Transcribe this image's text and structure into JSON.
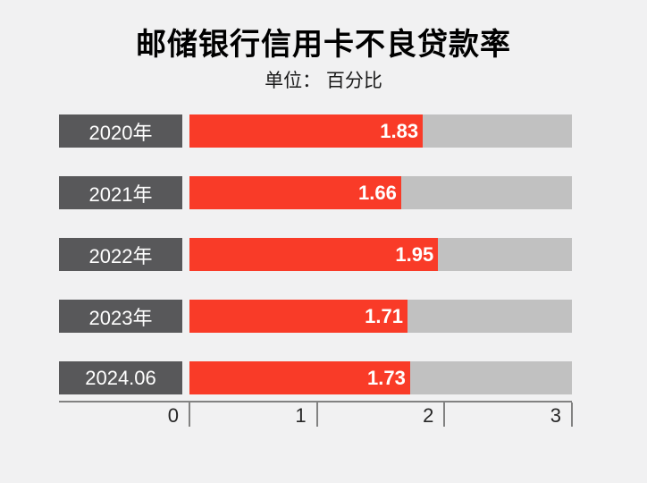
{
  "chart_data": {
    "type": "bar",
    "orientation": "horizontal",
    "title": "邮储银行信用卡不良贷款率",
    "unit_label": "单位： 百分比",
    "categories": [
      "2020年",
      "2021年",
      "2022年",
      "2023年",
      "2024.06"
    ],
    "values": [
      1.83,
      1.66,
      1.95,
      1.71,
      1.73
    ],
    "xlim": [
      0,
      3
    ],
    "x_ticks": [
      0,
      1,
      2,
      3
    ],
    "grid": false,
    "legend": false,
    "value_label_position": "inside-end",
    "colors": {
      "bar": "#f93b28",
      "track": "#c1c1c1",
      "category_box": "#58585a",
      "background": "#f1f1f2",
      "axis": "#828282",
      "value_text": "#ffffff",
      "category_text": "#ffffff",
      "tick_text": "#262626",
      "title_text": "#000000"
    }
  }
}
